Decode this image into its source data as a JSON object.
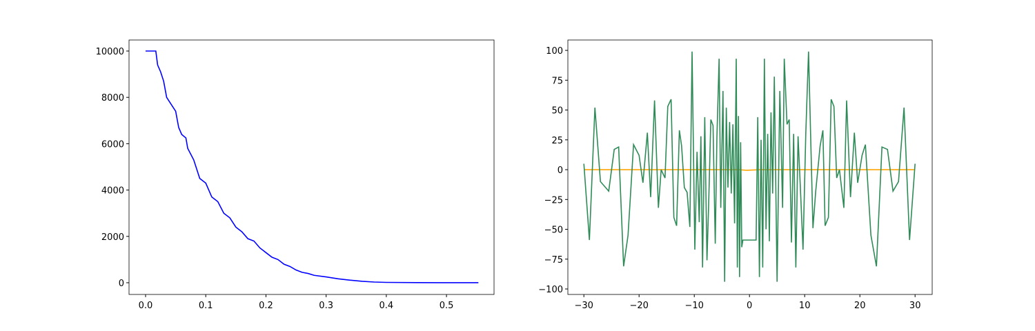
{
  "chart_data": [
    {
      "type": "line",
      "xlim": [
        -0.0275,
        0.579
      ],
      "ylim": [
        -506,
        10476
      ],
      "xticks": [
        {
          "value": 0,
          "label": "0.0"
        },
        {
          "value": 0.1,
          "label": "0.1"
        },
        {
          "value": 0.2,
          "label": "0.2"
        },
        {
          "value": 0.3,
          "label": "0.3"
        },
        {
          "value": 0.4,
          "label": "0.4"
        },
        {
          "value": 0.5,
          "label": "0.5"
        }
      ],
      "yticks": [
        0,
        2000,
        4000,
        6000,
        8000,
        10000
      ],
      "x": [
        0,
        0.017,
        0.02,
        0.025,
        0.03,
        0.035,
        0.04,
        0.05,
        0.055,
        0.06,
        0.067,
        0.07,
        0.08,
        0.09,
        0.1,
        0.11,
        0.12,
        0.13,
        0.14,
        0.15,
        0.16,
        0.17,
        0.18,
        0.19,
        0.2,
        0.21,
        0.22,
        0.23,
        0.24,
        0.25,
        0.26,
        0.27,
        0.28,
        0.3,
        0.32,
        0.34,
        0.36,
        0.38,
        0.4,
        0.45,
        0.5,
        0.553
      ],
      "series": [
        {
          "color": "#0000ff",
          "values": [
            10000,
            10000,
            9400,
            9100,
            8700,
            8000,
            7800,
            7400,
            6700,
            6400,
            6250,
            5800,
            5300,
            4500,
            4300,
            3700,
            3500,
            3000,
            2800,
            2400,
            2200,
            1900,
            1800,
            1500,
            1300,
            1100,
            1000,
            800,
            700,
            550,
            450,
            400,
            320,
            250,
            170,
            110,
            60,
            30,
            15,
            5,
            2,
            1
          ]
        }
      ]
    },
    {
      "type": "line",
      "xlim": [
        -32.9,
        33.1
      ],
      "ylim": [
        -104.6,
        108.7
      ],
      "xticks": [
        {
          "value": -30,
          "label": "−30"
        },
        {
          "value": -20,
          "label": "−20"
        },
        {
          "value": -10,
          "label": "−10"
        },
        0,
        10,
        20,
        30
      ],
      "yticks": [
        {
          "value": -100,
          "label": "−100"
        },
        {
          "value": -75,
          "label": "−75"
        },
        {
          "value": -50,
          "label": "−50"
        },
        {
          "value": -25,
          "label": "−25"
        },
        0,
        25,
        50,
        75,
        100
      ],
      "series": [
        {
          "color": "#ffa500",
          "x": [
            -30,
            -10,
            -2,
            -0.5,
            0.5,
            2,
            10,
            30
          ],
          "values": [
            0,
            0,
            0,
            -0.5,
            -0.3,
            0,
            0,
            0
          ]
        },
        {
          "color": "#2e8b57",
          "x": [
            -30,
            -29,
            -28,
            -27,
            -25.5,
            -24.5,
            -23.7,
            -22.8,
            -22,
            -21,
            -20,
            -19.3,
            -18.5,
            -17.9,
            -17.2,
            -16.5,
            -16,
            -15.3,
            -14.8,
            -14.2,
            -13.7,
            -13.2,
            -12.7,
            -12.3,
            -11.8,
            -11.3,
            -10.8,
            -10.4,
            -9.9,
            -9.5,
            -9.1,
            -8.8,
            -8.5,
            -8.1,
            -7.7,
            -7.4,
            -7,
            -6.6,
            -6.2,
            -5.9,
            -5.5,
            -5.2,
            -4.8,
            -4.5,
            -4.2,
            -3.9,
            -3.6,
            -3.3,
            -3,
            -2.7,
            -2.4,
            -2.2,
            -2,
            -1.8,
            -1.6,
            -1.4,
            -1.2,
            1.2,
            1.5,
            1.8,
            2.1,
            2.4,
            2.7,
            3,
            3.3,
            3.6,
            3.9,
            4.2,
            4.5,
            5,
            5.5,
            6,
            6.3,
            6.8,
            7.2,
            7.6,
            8,
            8.4,
            8.8,
            9.2,
            9.7,
            10.2,
            10.7,
            11.5,
            12,
            12.8,
            13.3,
            13.7,
            14.3,
            14.8,
            15.3,
            15.8,
            16.3,
            17.1,
            17.6,
            18.3,
            19,
            19.6,
            20.4,
            21,
            22,
            23,
            24,
            25,
            26,
            27,
            28,
            29,
            30
          ],
          "values": [
            5,
            -59,
            52,
            -10,
            -18,
            17,
            19,
            -81,
            -55,
            21,
            12,
            -11,
            31,
            -23,
            58,
            -32,
            0,
            -7,
            53,
            59,
            -40,
            -47,
            33,
            20,
            -15,
            -19,
            -48,
            99,
            -67,
            15,
            -44,
            28,
            -82,
            44,
            -76,
            -30,
            42,
            37,
            -62,
            27,
            93,
            -32,
            66,
            -94,
            52,
            -15,
            40,
            -20,
            38,
            -45,
            93,
            -82,
            45,
            -90,
            23,
            -65,
            -59,
            -59,
            44,
            -90,
            25,
            -82,
            93,
            -50,
            30,
            -60,
            48,
            -20,
            78,
            -94,
            66,
            -32,
            93,
            38,
            42,
            -61,
            30,
            -82,
            28,
            -13,
            -67,
            30,
            99,
            -49,
            -18,
            20,
            33,
            -47,
            -40,
            59,
            53,
            -7,
            0,
            -32,
            58,
            -23,
            31,
            -11,
            12,
            21,
            -55,
            -81,
            19,
            17,
            -18,
            -10,
            52,
            -59,
            5
          ]
        }
      ]
    }
  ]
}
